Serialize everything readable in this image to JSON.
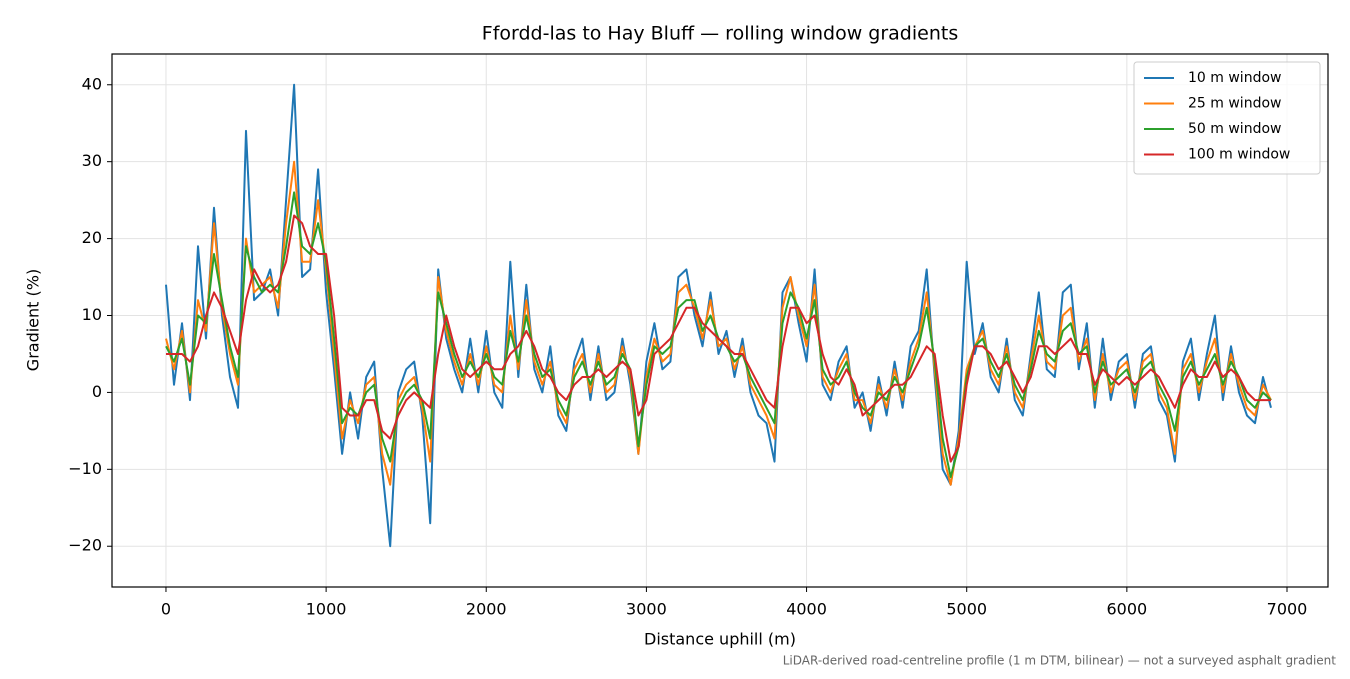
{
  "chart_data": {
    "type": "line",
    "title": "Ffordd-las to Hay Bluff — rolling window gradients",
    "xlabel": "Distance uphill (m)",
    "ylabel": "Gradient (%)",
    "note": "LiDAR-derived road-centreline profile (1 m DTM, bilinear) — not a surveyed asphalt gradient",
    "xlim": [
      -337,
      7256
    ],
    "ylim": [
      -25.3,
      44.0
    ],
    "xticks": [
      0,
      1000,
      2000,
      3000,
      4000,
      5000,
      6000,
      7000
    ],
    "yticks": [
      {
        "value": -20,
        "label": "−20"
      },
      {
        "value": -10,
        "label": "−10"
      },
      0,
      10,
      20,
      30,
      40
    ],
    "grid": true,
    "legend": "upper right",
    "x": [
      0,
      50,
      100,
      150,
      200,
      250,
      300,
      350,
      400,
      450,
      500,
      550,
      600,
      650,
      700,
      750,
      800,
      850,
      900,
      950,
      1000,
      1050,
      1100,
      1150,
      1200,
      1250,
      1300,
      1350,
      1400,
      1450,
      1500,
      1550,
      1600,
      1650,
      1700,
      1750,
      1800,
      1850,
      1900,
      1950,
      2000,
      2050,
      2100,
      2150,
      2200,
      2250,
      2300,
      2350,
      2400,
      2450,
      2500,
      2550,
      2600,
      2650,
      2700,
      2750,
      2800,
      2850,
      2900,
      2950,
      3000,
      3050,
      3100,
      3150,
      3200,
      3250,
      3300,
      3350,
      3400,
      3450,
      3500,
      3550,
      3600,
      3650,
      3700,
      3750,
      3800,
      3850,
      3900,
      3950,
      4000,
      4050,
      4100,
      4150,
      4200,
      4250,
      4300,
      4350,
      4400,
      4450,
      4500,
      4550,
      4600,
      4650,
      4700,
      4750,
      4800,
      4850,
      4900,
      4950,
      5000,
      5050,
      5100,
      5150,
      5200,
      5250,
      5300,
      5350,
      5400,
      5450,
      5500,
      5550,
      5600,
      5650,
      5700,
      5750,
      5800,
      5850,
      5900,
      5950,
      6000,
      6050,
      6100,
      6150,
      6200,
      6250,
      6300,
      6350,
      6400,
      6450,
      6500,
      6550,
      6600,
      6650,
      6700,
      6750,
      6800,
      6850,
      6900
    ],
    "series": [
      {
        "name": "10 m window",
        "color": "#1f77b4",
        "values": [
          14,
          1,
          9,
          -1,
          19,
          7,
          24,
          10,
          2,
          -2,
          34,
          12,
          13,
          16,
          10,
          25,
          40,
          15,
          16,
          29,
          13,
          3,
          -8,
          0,
          -6,
          2,
          4,
          -10,
          -20,
          0,
          3,
          4,
          -3,
          -17,
          16,
          7,
          3,
          0,
          7,
          0,
          8,
          0,
          -2,
          17,
          2,
          14,
          3,
          0,
          6,
          -3,
          -5,
          4,
          7,
          -1,
          6,
          -1,
          0,
          7,
          1,
          -8,
          4,
          9,
          3,
          4,
          15,
          16,
          10,
          6,
          13,
          5,
          8,
          2,
          7,
          0,
          -3,
          -4,
          -9,
          13,
          15,
          9,
          4,
          16,
          1,
          -1,
          4,
          6,
          -2,
          0,
          -5,
          2,
          -3,
          4,
          -2,
          6,
          8,
          16,
          2,
          -10,
          -12,
          -5,
          17,
          5,
          9,
          2,
          0,
          7,
          -1,
          -3,
          5,
          13,
          3,
          2,
          13,
          14,
          3,
          9,
          -2,
          7,
          -1,
          4,
          5,
          -2,
          5,
          6,
          -1,
          -3,
          -9,
          4,
          7,
          -1,
          5,
          10,
          -1,
          6,
          0,
          -3,
          -4,
          2,
          -2
        ]
      },
      {
        "name": "25 m window",
        "color": "#ff7f0e",
        "values": [
          7,
          3,
          8,
          0,
          12,
          8,
          22,
          11,
          5,
          1,
          20,
          13,
          14,
          15,
          11,
          22,
          30,
          17,
          17,
          25,
          16,
          5,
          -6,
          -1,
          -4,
          1,
          2,
          -8,
          -12,
          -1,
          1,
          2,
          -2,
          -9,
          15,
          8,
          4,
          1,
          5,
          1,
          6,
          1,
          0,
          10,
          3,
          12,
          4,
          1,
          4,
          -2,
          -4,
          3,
          5,
          0,
          5,
          0,
          1,
          6,
          2,
          -8,
          2,
          7,
          4,
          5,
          13,
          14,
          11,
          7,
          12,
          6,
          7,
          3,
          6,
          1,
          -1,
          -3,
          -6,
          11,
          15,
          10,
          6,
          14,
          2,
          0,
          3,
          5,
          -1,
          -1,
          -4,
          1,
          -2,
          3,
          -1,
          4,
          7,
          13,
          3,
          -8,
          -12,
          -6,
          3,
          6,
          8,
          3,
          1,
          6,
          0,
          -2,
          4,
          10,
          4,
          3,
          10,
          11,
          4,
          7,
          -1,
          5,
          0,
          3,
          4,
          -1,
          4,
          5,
          0,
          -2,
          -8,
          3,
          5,
          0,
          4,
          7,
          0,
          5,
          1,
          -2,
          -3,
          1,
          -1
        ]
      },
      {
        "name": "50 m window",
        "color": "#2ca02c",
        "values": [
          6,
          4,
          7,
          1,
          10,
          9,
          18,
          12,
          6,
          2,
          19,
          15,
          13,
          14,
          13,
          19,
          26,
          19,
          18,
          22,
          17,
          7,
          -4,
          -2,
          -3,
          0,
          1,
          -6,
          -9,
          -2,
          0,
          1,
          -1,
          -6,
          13,
          9,
          5,
          2,
          4,
          2,
          5,
          2,
          1,
          8,
          4,
          10,
          5,
          2,
          3,
          -1,
          -3,
          2,
          4,
          1,
          4,
          1,
          2,
          5,
          3,
          -7,
          1,
          6,
          5,
          6,
          11,
          12,
          12,
          8,
          10,
          7,
          6,
          4,
          5,
          2,
          0,
          -2,
          -4,
          9,
          13,
          11,
          7,
          12,
          3,
          1,
          2,
          4,
          0,
          -2,
          -3,
          0,
          -1,
          2,
          0,
          3,
          6,
          11,
          4,
          -6,
          -11,
          -7,
          2,
          6,
          7,
          4,
          2,
          5,
          1,
          -1,
          3,
          8,
          5,
          4,
          8,
          9,
          5,
          6,
          0,
          4,
          1,
          2,
          3,
          0,
          3,
          4,
          1,
          -1,
          -5,
          2,
          4,
          1,
          3,
          5,
          1,
          4,
          2,
          -1,
          -2,
          0,
          -1
        ]
      },
      {
        "name": "100 m window",
        "color": "#d62728",
        "values": [
          5,
          5,
          5,
          4,
          6,
          10,
          13,
          11,
          8,
          5,
          12,
          16,
          14,
          13,
          14,
          17,
          23,
          22,
          19,
          18,
          18,
          10,
          -2,
          -3,
          -3,
          -1,
          -1,
          -5,
          -6,
          -3,
          -1,
          0,
          -1,
          -2,
          5,
          10,
          6,
          3,
          2,
          3,
          4,
          3,
          3,
          5,
          6,
          8,
          6,
          3,
          2,
          0,
          -1,
          1,
          2,
          2,
          3,
          2,
          3,
          4,
          3,
          -3,
          -1,
          5,
          6,
          7,
          9,
          11,
          11,
          9,
          8,
          7,
          6,
          5,
          5,
          3,
          1,
          -1,
          -2,
          6,
          11,
          11,
          9,
          10,
          5,
          2,
          1,
          3,
          1,
          -3,
          -2,
          -1,
          0,
          1,
          1,
          2,
          4,
          6,
          5,
          -3,
          -9,
          -7,
          1,
          6,
          6,
          5,
          3,
          4,
          2,
          0,
          2,
          6,
          6,
          5,
          6,
          7,
          5,
          5,
          1,
          3,
          2,
          1,
          2,
          1,
          2,
          3,
          2,
          0,
          -2,
          1,
          3,
          2,
          2,
          4,
          2,
          3,
          2,
          0,
          -1,
          -1,
          -1
        ]
      }
    ]
  }
}
